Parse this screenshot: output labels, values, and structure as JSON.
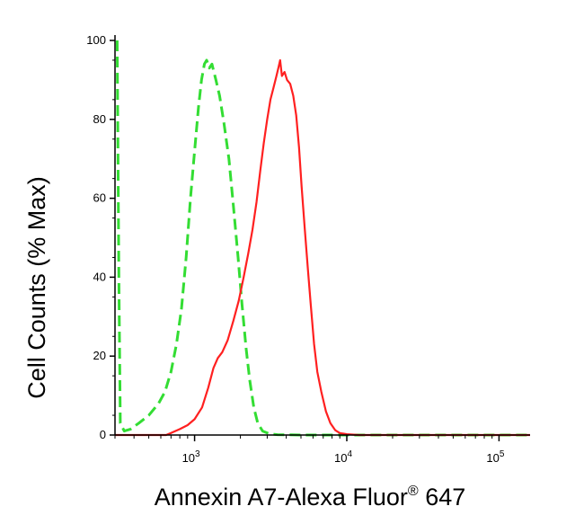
{
  "chart_data": {
    "type": "line",
    "xlabel": "Annexin A7-Alexa Fluor",
    "xlabel_super": "®",
    "xlabel_tail": " 647",
    "ylabel": "Cell Counts (% Max)",
    "x_scale": "log",
    "xlim": [
      300,
      160000
    ],
    "ylim": [
      0,
      100
    ],
    "grid": false,
    "y_ticks": [
      {
        "value": 0,
        "label": "0"
      },
      {
        "value": 20,
        "label": "20"
      },
      {
        "value": 40,
        "label": "40"
      },
      {
        "value": 60,
        "label": "60"
      },
      {
        "value": 80,
        "label": "80"
      },
      {
        "value": 100,
        "label": "100"
      }
    ],
    "x_ticks": [
      {
        "value": 1000,
        "base": "10",
        "exp": "3"
      },
      {
        "value": 10000,
        "base": "10",
        "exp": "4"
      },
      {
        "value": 100000,
        "base": "10",
        "exp": "5"
      }
    ],
    "series": [
      {
        "color": "#33dd33",
        "style": "dashed",
        "points": [
          [
            310,
            100
          ],
          [
            318,
            40
          ],
          [
            325,
            3
          ],
          [
            345,
            1
          ],
          [
            380,
            1.5
          ],
          [
            430,
            3
          ],
          [
            500,
            5
          ],
          [
            580,
            8
          ],
          [
            640,
            11
          ],
          [
            700,
            16
          ],
          [
            760,
            23
          ],
          [
            820,
            32
          ],
          [
            880,
            45
          ],
          [
            940,
            60
          ],
          [
            1000,
            72
          ],
          [
            1060,
            83
          ],
          [
            1110,
            90
          ],
          [
            1160,
            94
          ],
          [
            1200,
            95
          ],
          [
            1250,
            93
          ],
          [
            1300,
            94
          ],
          [
            1380,
            90
          ],
          [
            1460,
            86
          ],
          [
            1560,
            79
          ],
          [
            1680,
            70
          ],
          [
            1800,
            58
          ],
          [
            1930,
            45
          ],
          [
            2050,
            33
          ],
          [
            2180,
            22
          ],
          [
            2300,
            14
          ],
          [
            2450,
            7
          ],
          [
            2600,
            3
          ],
          [
            2800,
            1
          ],
          [
            3100,
            0.3
          ],
          [
            3500,
            0.1
          ],
          [
            5000,
            0
          ],
          [
            160000,
            0
          ]
        ]
      },
      {
        "color": "#ff2020",
        "style": "solid",
        "points": [
          [
            300,
            0
          ],
          [
            650,
            0
          ],
          [
            700,
            0.5
          ],
          [
            800,
            1.5
          ],
          [
            900,
            2.5
          ],
          [
            1000,
            4
          ],
          [
            1120,
            7
          ],
          [
            1230,
            12
          ],
          [
            1330,
            17
          ],
          [
            1420,
            19.5
          ],
          [
            1520,
            21
          ],
          [
            1650,
            24
          ],
          [
            1800,
            29
          ],
          [
            1950,
            34
          ],
          [
            2100,
            40
          ],
          [
            2250,
            46
          ],
          [
            2400,
            52
          ],
          [
            2550,
            59
          ],
          [
            2700,
            67
          ],
          [
            2850,
            74
          ],
          [
            3000,
            80
          ],
          [
            3150,
            85
          ],
          [
            3300,
            88
          ],
          [
            3450,
            91
          ],
          [
            3550,
            93
          ],
          [
            3650,
            95
          ],
          [
            3750,
            91
          ],
          [
            3900,
            92
          ],
          [
            4050,
            90
          ],
          [
            4250,
            89
          ],
          [
            4450,
            86
          ],
          [
            4650,
            81
          ],
          [
            4850,
            73
          ],
          [
            5050,
            63
          ],
          [
            5300,
            52
          ],
          [
            5550,
            42
          ],
          [
            5800,
            33
          ],
          [
            6100,
            23
          ],
          [
            6400,
            16
          ],
          [
            6800,
            11
          ],
          [
            7300,
            6
          ],
          [
            7800,
            3
          ],
          [
            8400,
            1.2
          ],
          [
            9000,
            0.5
          ],
          [
            10000,
            0.2
          ],
          [
            12000,
            0
          ],
          [
            160000,
            0
          ]
        ]
      }
    ]
  }
}
